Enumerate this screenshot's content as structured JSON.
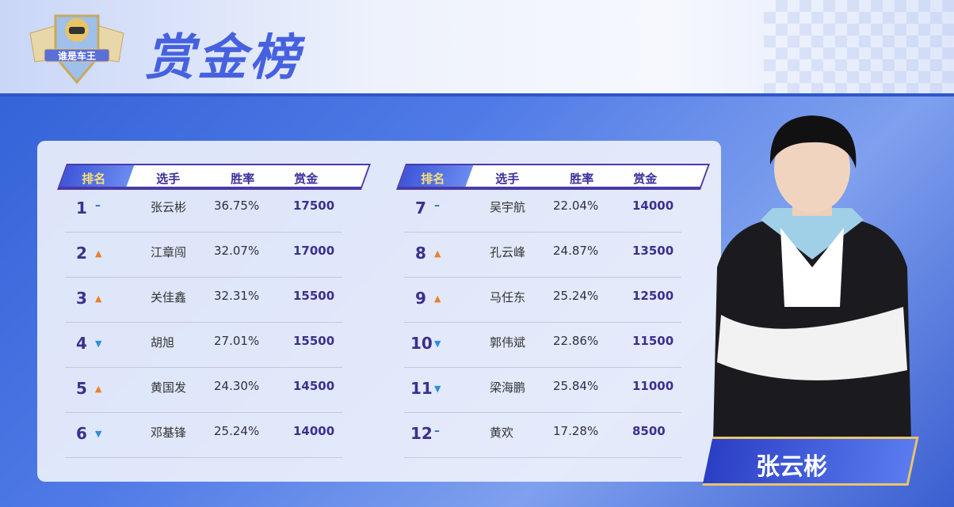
{
  "header": {
    "title": "赏金榜",
    "logo_text": "谁是车王"
  },
  "colors": {
    "accent": "#4661e0",
    "up": "#ef7d2a",
    "down": "#2d8fd6"
  },
  "columns": {
    "rank": "排名",
    "player": "选手",
    "win_rate": "胜率",
    "prize": "赏金"
  },
  "left_table": [
    {
      "rank": "1",
      "trend": "same",
      "name": "张云彬",
      "rate": "36.75%",
      "prize": "17500"
    },
    {
      "rank": "2",
      "trend": "up",
      "name": "江章闯",
      "rate": "32.07%",
      "prize": "17000"
    },
    {
      "rank": "3",
      "trend": "up",
      "name": "关佳鑫",
      "rate": "32.31%",
      "prize": "15500"
    },
    {
      "rank": "4",
      "trend": "down",
      "name": "胡旭",
      "rate": "27.01%",
      "prize": "15500"
    },
    {
      "rank": "5",
      "trend": "up",
      "name": "黄国发",
      "rate": "24.30%",
      "prize": "14500"
    },
    {
      "rank": "6",
      "trend": "down",
      "name": "邓基锋",
      "rate": "25.24%",
      "prize": "14000"
    }
  ],
  "right_table": [
    {
      "rank": "7",
      "trend": "same",
      "name": "吴宇航",
      "rate": "22.04%",
      "prize": "14000"
    },
    {
      "rank": "8",
      "trend": "up",
      "name": "孔云峰",
      "rate": "24.87%",
      "prize": "13500"
    },
    {
      "rank": "9",
      "trend": "up",
      "name": "马任东",
      "rate": "25.24%",
      "prize": "12500"
    },
    {
      "rank": "10",
      "trend": "down",
      "name": "郭伟斌",
      "rate": "22.86%",
      "prize": "11500"
    },
    {
      "rank": "11",
      "trend": "down",
      "name": "梁海鹏",
      "rate": "25.84%",
      "prize": "11000"
    },
    {
      "rank": "12",
      "trend": "same",
      "name": "黄欢",
      "rate": "17.28%",
      "prize": "8500"
    }
  ],
  "featured": {
    "name": "张云彬"
  }
}
